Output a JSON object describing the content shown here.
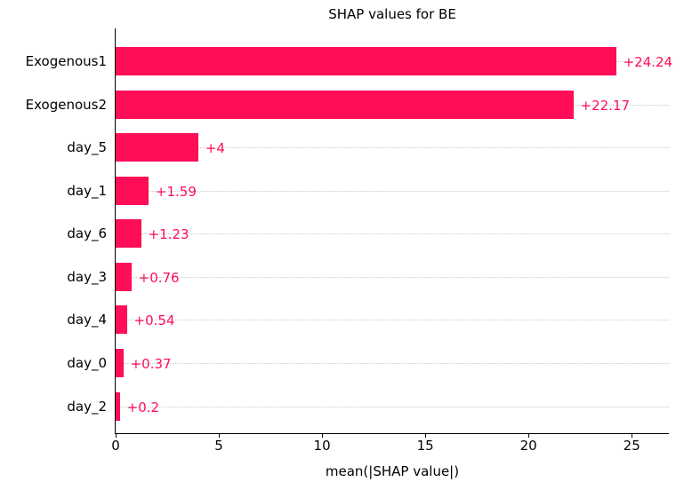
{
  "chart_data": {
    "type": "bar",
    "orientation": "horizontal",
    "title": "SHAP values for BE",
    "xlabel": "mean(|SHAP value|)",
    "categories": [
      "Exogenous1",
      "Exogenous2",
      "day_5",
      "day_1",
      "day_6",
      "day_3",
      "day_4",
      "day_0",
      "day_2"
    ],
    "values": [
      24.24,
      22.17,
      4,
      1.59,
      1.23,
      0.76,
      0.54,
      0.37,
      0.2
    ],
    "value_labels": [
      "+24.24",
      "+22.17",
      "+4",
      "+1.59",
      "+1.23",
      "+0.76",
      "+0.54",
      "+0.37",
      "+0.2"
    ],
    "xticks": [
      "0",
      "5",
      "10",
      "15",
      "20",
      "25"
    ],
    "xtick_values": [
      0,
      5,
      10,
      15,
      20,
      25
    ],
    "xlim": [
      0,
      26.8
    ],
    "bar_color": "#ff0d57",
    "value_label_color": "#ff0d57",
    "grid": "horizontal-dotted",
    "gridline_color": "#c9c9c9",
    "legend_position": "none"
  }
}
